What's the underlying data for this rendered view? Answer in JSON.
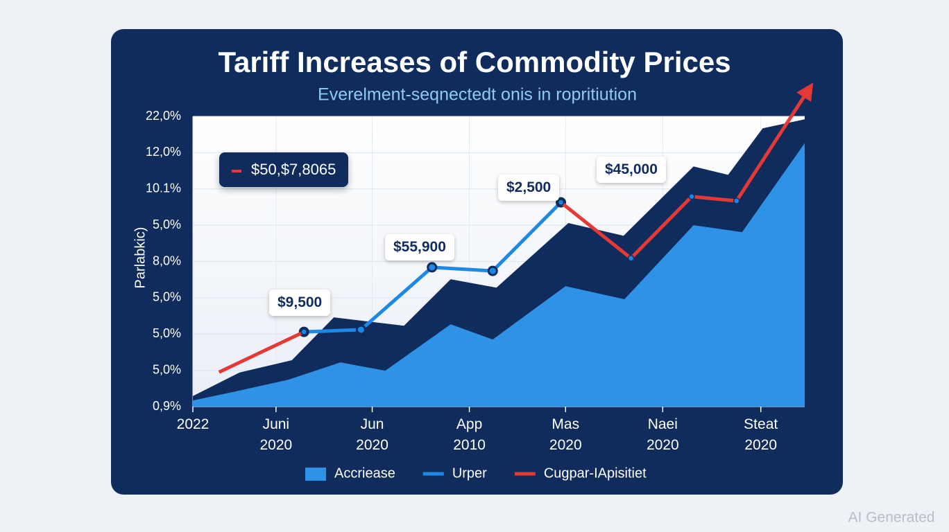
{
  "chart_data": {
    "type": "line",
    "title": "Tariff Increases of Commodity Prices",
    "subtitle": "Everelment-seqnectedt onis in ropritiution",
    "y_label": "Parlabkic)",
    "xlim": [
      0,
      6.55
    ],
    "ylim": [
      0,
      8
    ],
    "xticks": [
      {
        "value": 0,
        "label": "2022"
      },
      {
        "value": 0.89,
        "label": "Juni\n2020"
      },
      {
        "value": 1.92,
        "label": "Jun\n2020"
      },
      {
        "value": 2.96,
        "label": "App\n2010"
      },
      {
        "value": 3.99,
        "label": "Mas\n2020"
      },
      {
        "value": 5.03,
        "label": "Naei\n2020"
      },
      {
        "value": 6.08,
        "label": "Steat\n2020"
      }
    ],
    "yticks": [
      {
        "value": 0,
        "label": "0,9%"
      },
      {
        "value": 1,
        "label": "5,0%"
      },
      {
        "value": 2,
        "label": "5,0%"
      },
      {
        "value": 3,
        "label": "5,0%"
      },
      {
        "value": 4,
        "label": "8,0%"
      },
      {
        "value": 5,
        "label": "5,0%"
      },
      {
        "value": 6,
        "label": "10.1%"
      },
      {
        "value": 7,
        "label": "12,0%"
      },
      {
        "value": 8,
        "label": "22,0%"
      }
    ],
    "grid": true,
    "series": [
      {
        "type": "area",
        "color": "#0f2c5c",
        "x": [
          0,
          0.5,
          1.06,
          1.51,
          2.26,
          2.76,
          3.25,
          4.02,
          4.61,
          5.36,
          5.73,
          6.1,
          6.55
        ],
        "values": [
          0.29,
          0.94,
          1.28,
          2.46,
          2.23,
          3.51,
          3.28,
          5.06,
          4.71,
          6.62,
          6.39,
          7.67,
          7.92
        ]
      },
      {
        "type": "area",
        "name": "Accriease",
        "color": "#2e93e6",
        "x": [
          0,
          0.46,
          1.02,
          1.58,
          2.06,
          2.76,
          3.21,
          3.99,
          4.62,
          5.36,
          5.88,
          6.55
        ],
        "values": [
          0.17,
          0.42,
          0.74,
          1.22,
          0.99,
          2.27,
          1.85,
          3.32,
          2.96,
          5.0,
          4.81,
          7.26
        ]
      },
      {
        "type": "line",
        "name": "Urper",
        "color": "#1e88e5",
        "x": [
          1.19,
          1.8,
          2.56,
          3.21,
          3.94
        ],
        "values": [
          2.06,
          2.12,
          3.84,
          3.74,
          5.63
        ]
      },
      {
        "type": "line",
        "name": "Cugpar-IApisitiet",
        "color": "#e53935",
        "x": [
          0.28,
          1.19,
          1.8,
          3.94,
          4.69,
          5.34,
          5.82,
          6.59
        ],
        "values": [
          0.95,
          2.06,
          null,
          5.63,
          4.09,
          5.79,
          5.67,
          8.73
        ]
      }
    ],
    "annotations": [
      "$50,$7,8065",
      "$9,500",
      "$55,900",
      "$2,500",
      "$45,000"
    ],
    "legend": "bottom"
  },
  "watermark": "AI Generated"
}
